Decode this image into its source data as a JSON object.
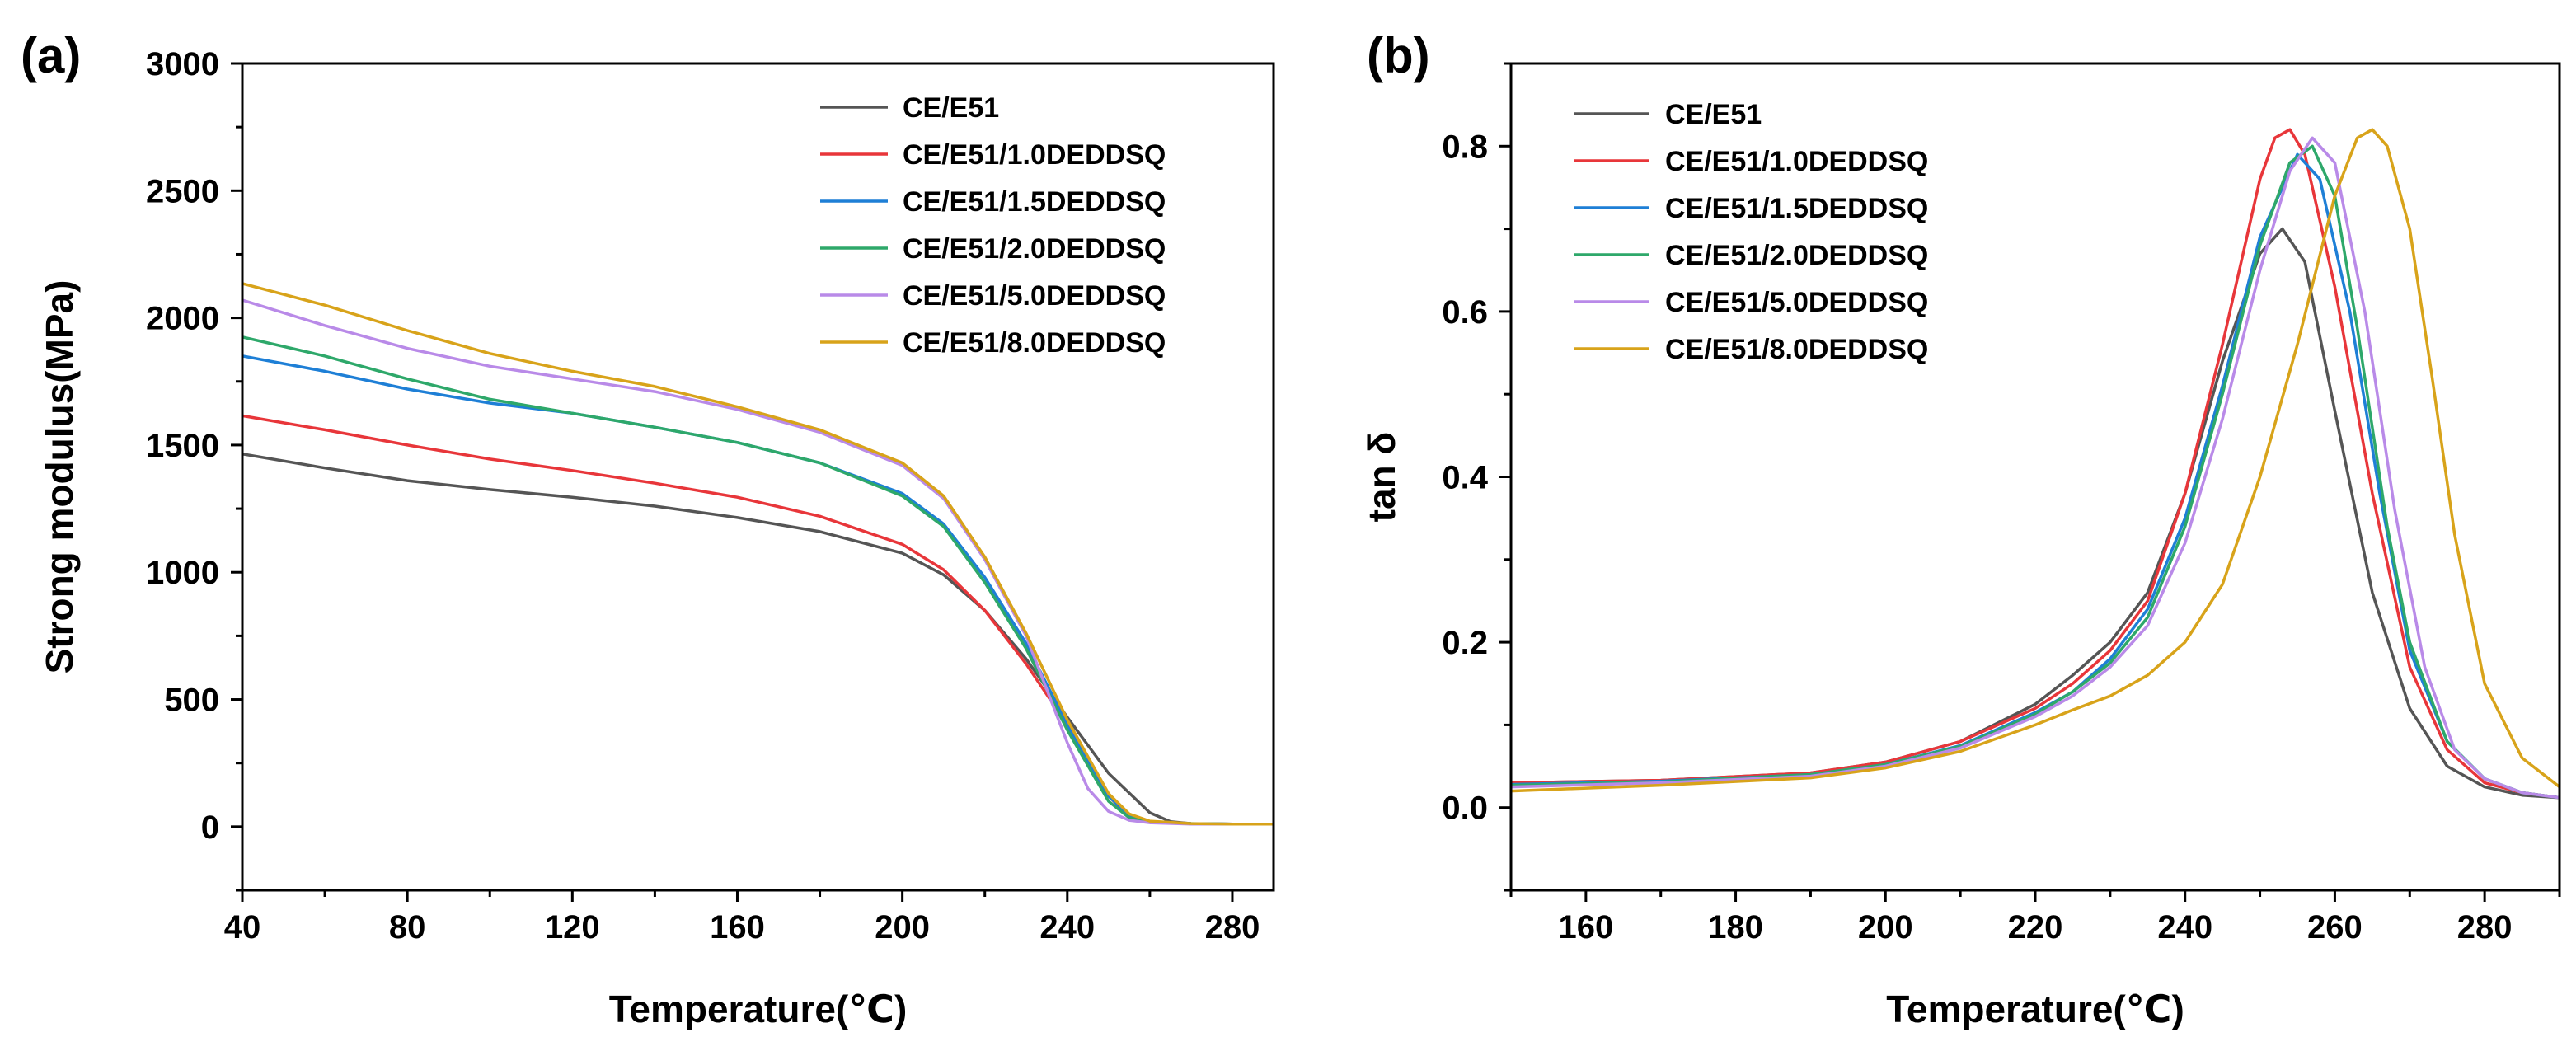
{
  "chart_data": [
    {
      "type": "line",
      "panel_label": "(a)",
      "title": "",
      "xlabel": "Temperature(℃)",
      "ylabel": "Strong modulus(MPa)",
      "xlim": [
        40,
        290
      ],
      "ylim": [
        -250,
        3000
      ],
      "xticks": [
        40,
        80,
        120,
        160,
        200,
        240,
        280
      ],
      "yticks": [
        0,
        500,
        1000,
        1500,
        2000,
        2500,
        3000
      ],
      "legend_position": "top-right",
      "grid": false,
      "series": [
        {
          "name": "CE/E51",
          "color": "#555555",
          "x": [
            40,
            60,
            80,
            100,
            120,
            140,
            160,
            180,
            200,
            210,
            220,
            230,
            240,
            250,
            260,
            265,
            270,
            280,
            290
          ],
          "y": [
            1465,
            1410,
            1360,
            1325,
            1295,
            1260,
            1215,
            1160,
            1075,
            990,
            850,
            660,
            430,
            210,
            55,
            20,
            12,
            10,
            10
          ]
        },
        {
          "name": "CE/E51/1.0DEDDSQ",
          "color": "#E8363A",
          "x": [
            40,
            60,
            80,
            100,
            120,
            140,
            160,
            180,
            200,
            210,
            220,
            230,
            240,
            250,
            255,
            260,
            270,
            280,
            290
          ],
          "y": [
            1615,
            1560,
            1500,
            1445,
            1400,
            1350,
            1295,
            1220,
            1110,
            1010,
            850,
            640,
            400,
            120,
            40,
            20,
            12,
            10,
            10
          ]
        },
        {
          "name": "CE/E51/1.5DEDDSQ",
          "color": "#1E7FD6",
          "x": [
            40,
            60,
            80,
            100,
            120,
            140,
            160,
            180,
            200,
            210,
            220,
            230,
            240,
            250,
            255,
            260,
            270,
            280,
            290
          ],
          "y": [
            1850,
            1790,
            1720,
            1665,
            1625,
            1570,
            1510,
            1430,
            1310,
            1190,
            980,
            720,
            400,
            120,
            45,
            20,
            12,
            10,
            10
          ]
        },
        {
          "name": "CE/E51/2.0DEDDSQ",
          "color": "#2EA86A",
          "x": [
            40,
            60,
            80,
            100,
            120,
            140,
            160,
            180,
            200,
            210,
            220,
            230,
            240,
            250,
            255,
            260,
            270,
            280,
            290
          ],
          "y": [
            1925,
            1850,
            1760,
            1680,
            1625,
            1570,
            1510,
            1430,
            1300,
            1180,
            960,
            700,
            380,
            100,
            35,
            18,
            12,
            10,
            10
          ]
        },
        {
          "name": "CE/E51/5.0DEDDSQ",
          "color": "#B98AE8",
          "x": [
            40,
            60,
            80,
            100,
            120,
            140,
            160,
            180,
            200,
            210,
            220,
            230,
            240,
            245,
            250,
            255,
            260,
            270,
            280,
            290
          ],
          "y": [
            2070,
            1970,
            1880,
            1810,
            1760,
            1710,
            1640,
            1550,
            1420,
            1290,
            1050,
            750,
            330,
            150,
            60,
            25,
            15,
            10,
            10,
            10
          ]
        },
        {
          "name": "CE/E51/8.0DEDDSQ",
          "color": "#D8A31A",
          "x": [
            40,
            60,
            80,
            100,
            120,
            140,
            160,
            180,
            200,
            210,
            220,
            230,
            240,
            250,
            255,
            260,
            270,
            280,
            290
          ],
          "y": [
            2135,
            2050,
            1950,
            1860,
            1790,
            1730,
            1650,
            1560,
            1430,
            1300,
            1060,
            760,
            420,
            130,
            50,
            22,
            12,
            10,
            10
          ]
        }
      ]
    },
    {
      "type": "line",
      "panel_label": "(b)",
      "title": "",
      "xlabel": "Temperature(℃)",
      "ylabel": "tan δ",
      "xlim": [
        150,
        290
      ],
      "ylim": [
        -0.1,
        0.9
      ],
      "xticks": [
        160,
        180,
        200,
        220,
        240,
        260,
        280
      ],
      "yticks": [
        0.0,
        0.2,
        0.4,
        0.6,
        0.8
      ],
      "legend_position": "top-left",
      "grid": false,
      "series": [
        {
          "name": "CE/E51",
          "color": "#555555",
          "x": [
            150,
            170,
            190,
            200,
            210,
            220,
            225,
            230,
            235,
            240,
            245,
            250,
            253,
            256,
            260,
            265,
            270,
            275,
            280,
            285,
            290
          ],
          "y": [
            0.03,
            0.033,
            0.042,
            0.055,
            0.08,
            0.125,
            0.16,
            0.2,
            0.26,
            0.38,
            0.54,
            0.67,
            0.7,
            0.66,
            0.48,
            0.26,
            0.12,
            0.05,
            0.025,
            0.015,
            0.012
          ]
        },
        {
          "name": "CE/E51/1.0DEDDSQ",
          "color": "#E8363A",
          "x": [
            150,
            170,
            190,
            200,
            210,
            220,
            225,
            230,
            235,
            240,
            245,
            250,
            252,
            254,
            256,
            260,
            265,
            270,
            275,
            280,
            285,
            290
          ],
          "y": [
            0.03,
            0.033,
            0.042,
            0.055,
            0.08,
            0.12,
            0.15,
            0.19,
            0.25,
            0.38,
            0.56,
            0.76,
            0.81,
            0.82,
            0.79,
            0.63,
            0.38,
            0.17,
            0.07,
            0.03,
            0.018,
            0.012
          ]
        },
        {
          "name": "CE/E51/1.5DEDDSQ",
          "color": "#1E7FD6",
          "x": [
            150,
            170,
            190,
            200,
            210,
            220,
            225,
            230,
            235,
            240,
            245,
            250,
            255,
            258,
            262,
            266,
            270,
            275,
            280,
            285,
            290
          ],
          "y": [
            0.028,
            0.032,
            0.04,
            0.052,
            0.075,
            0.115,
            0.14,
            0.18,
            0.24,
            0.35,
            0.51,
            0.69,
            0.79,
            0.76,
            0.6,
            0.38,
            0.19,
            0.08,
            0.035,
            0.018,
            0.012
          ]
        },
        {
          "name": "CE/E51/2.0DEDDSQ",
          "color": "#2EA86A",
          "x": [
            150,
            170,
            190,
            200,
            210,
            220,
            225,
            230,
            235,
            240,
            245,
            250,
            254,
            257,
            260,
            263,
            267,
            270,
            275,
            280,
            285,
            290
          ],
          "y": [
            0.027,
            0.031,
            0.04,
            0.052,
            0.074,
            0.113,
            0.14,
            0.175,
            0.23,
            0.34,
            0.5,
            0.68,
            0.78,
            0.8,
            0.74,
            0.58,
            0.34,
            0.2,
            0.08,
            0.035,
            0.018,
            0.012
          ]
        },
        {
          "name": "CE/E51/5.0DEDDSQ",
          "color": "#B98AE8",
          "x": [
            150,
            170,
            190,
            200,
            210,
            220,
            225,
            230,
            235,
            240,
            245,
            250,
            254,
            257,
            260,
            264,
            268,
            272,
            276,
            280,
            285,
            290
          ],
          "y": [
            0.025,
            0.03,
            0.038,
            0.05,
            0.072,
            0.11,
            0.135,
            0.17,
            0.22,
            0.32,
            0.47,
            0.65,
            0.77,
            0.81,
            0.78,
            0.6,
            0.36,
            0.17,
            0.07,
            0.035,
            0.018,
            0.012
          ]
        },
        {
          "name": "CE/E51/8.0DEDDSQ",
          "color": "#D8A31A",
          "x": [
            150,
            170,
            190,
            200,
            210,
            220,
            225,
            230,
            235,
            240,
            245,
            250,
            255,
            260,
            263,
            265,
            267,
            270,
            273,
            276,
            280,
            285,
            290
          ],
          "y": [
            0.02,
            0.027,
            0.036,
            0.048,
            0.068,
            0.1,
            0.118,
            0.135,
            0.16,
            0.2,
            0.27,
            0.4,
            0.56,
            0.74,
            0.81,
            0.82,
            0.8,
            0.7,
            0.52,
            0.33,
            0.15,
            0.06,
            0.025
          ]
        }
      ]
    }
  ]
}
